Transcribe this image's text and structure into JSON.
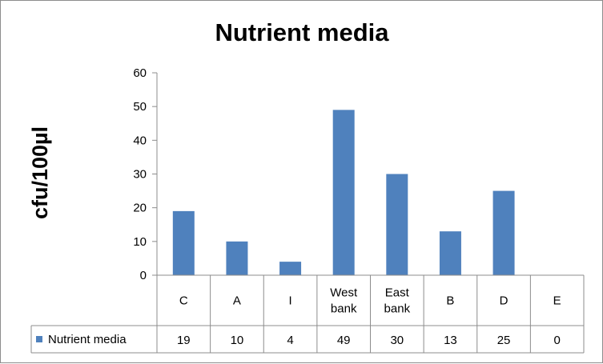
{
  "chart_data": {
    "type": "bar",
    "title": "Nutrient media",
    "xlabel": "",
    "ylabel": "cfu/100µl",
    "categories": [
      [
        "C"
      ],
      [
        "A"
      ],
      [
        "I"
      ],
      [
        "West",
        "bank"
      ],
      [
        "East",
        "bank"
      ],
      [
        "B"
      ],
      [
        "D"
      ],
      [
        "E"
      ]
    ],
    "series": [
      {
        "name": "Nutrient media",
        "values": [
          19,
          10,
          4,
          49,
          30,
          13,
          25,
          0
        ],
        "color": "#4f81bd"
      }
    ],
    "ylim": [
      0,
      60
    ],
    "yticks": [
      0,
      10,
      20,
      30,
      40,
      50,
      60
    ],
    "grid": false,
    "legend": "data-table",
    "data_table": true
  }
}
